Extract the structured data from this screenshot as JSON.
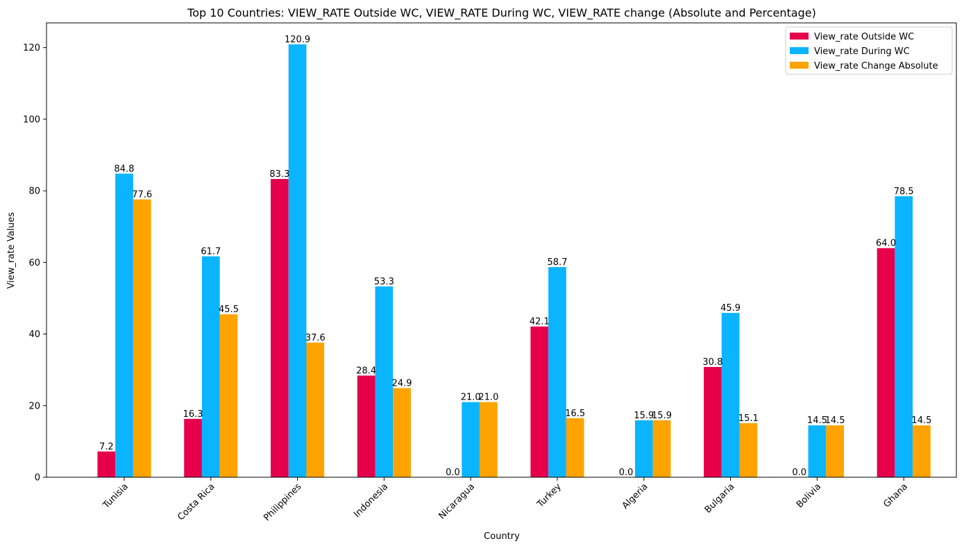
{
  "chart_data": {
    "type": "bar",
    "title": "Top 10 Countries: VIEW_RATE Outside WC, VIEW_RATE During WC, VIEW_RATE change (Absolute and Percentage)",
    "xlabel": "Country",
    "ylabel": "View_rate Values",
    "categories": [
      "Tunisia",
      "Costa Rica",
      "Philippines",
      "Indonesia",
      "Nicaragua",
      "Turkey",
      "Algeria",
      "Bulgaria",
      "Bolivia",
      "Ghana"
    ],
    "series": [
      {
        "name": "View_rate Outside WC",
        "color": "#E6004C",
        "values": [
          7.2,
          16.3,
          83.3,
          28.4,
          0.0,
          42.1,
          0.0,
          30.8,
          0.0,
          64.0
        ]
      },
      {
        "name": "View_rate During WC",
        "color": "#0BB4FF",
        "values": [
          84.8,
          61.7,
          120.9,
          53.3,
          21.0,
          58.7,
          15.9,
          45.9,
          14.5,
          78.5
        ]
      },
      {
        "name": "View_rate Change Absolute",
        "color": "#FFA300",
        "values": [
          77.6,
          45.5,
          37.6,
          24.9,
          21.0,
          16.5,
          15.9,
          15.1,
          14.5,
          14.5
        ]
      }
    ],
    "ylim": [
      0,
      126.9
    ],
    "yticks": [
      0,
      20,
      40,
      60,
      80,
      100,
      120
    ],
    "legend_position": "top-right",
    "grid": false
  }
}
